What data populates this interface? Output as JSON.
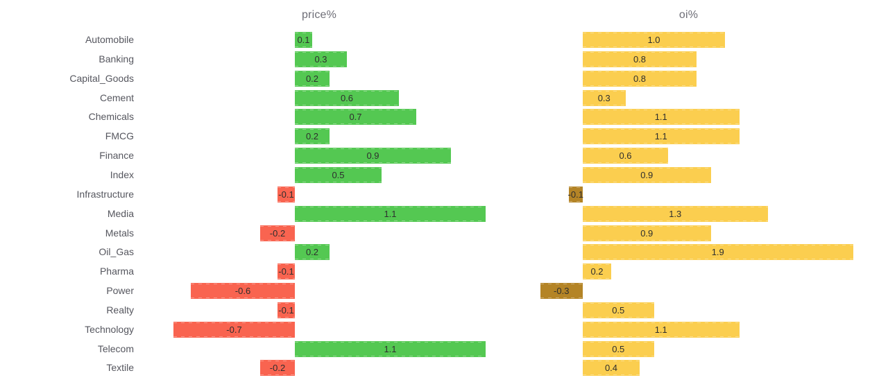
{
  "page": {
    "background_color": "#ffffff"
  },
  "chart_data": {
    "type": "bar",
    "orientation": "horizontal",
    "grid": false,
    "legend": false,
    "categories": [
      "Automobile",
      "Banking",
      "Capital_Goods",
      "Cement",
      "Chemicals",
      "FMCG",
      "Finance",
      "Index",
      "Infrastructure",
      "Media",
      "Metals",
      "Oil_Gas",
      "Pharma",
      "Power",
      "Realty",
      "Technology",
      "Telecom",
      "Textile"
    ],
    "series": [
      {
        "name": "price%",
        "values": [
          0.1,
          0.3,
          0.2,
          0.6,
          0.7,
          0.2,
          0.9,
          0.5,
          -0.1,
          1.1,
          -0.2,
          0.2,
          -0.1,
          -0.6,
          -0.1,
          -0.7,
          1.1,
          -0.2
        ],
        "positive_color": "#54c852",
        "negative_color": "#f96450",
        "xlim": [
          -0.9,
          1.16
        ]
      },
      {
        "name": "oi%",
        "values": [
          1.0,
          0.8,
          0.8,
          0.3,
          1.1,
          1.1,
          0.6,
          0.9,
          -0.1,
          1.3,
          0.9,
          1.9,
          0.2,
          -0.3,
          0.5,
          1.1,
          0.5,
          0.4
        ],
        "positive_color": "#fbce4f",
        "negative_color": "#b48426",
        "xlim": [
          -0.39,
          2.06
        ]
      }
    ],
    "value_label_format": "one_decimal",
    "value_label_position": "inside-center",
    "category_label_color": "#55565e",
    "title_color": "#6d6d76",
    "value_text_color": "#2e2e2e"
  }
}
